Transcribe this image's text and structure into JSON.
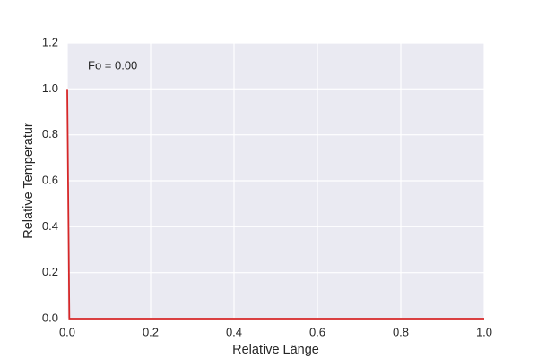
{
  "chart_data": {
    "type": "line",
    "x": [
      0,
      0.005,
      1
    ],
    "values": [
      1,
      0,
      0
    ],
    "color": "#d62728",
    "xlabel": "Relative Länge",
    "ylabel": "Relative Temperatur",
    "annotation": "Fo = 0.00",
    "xlim": [
      0,
      1
    ],
    "ylim": [
      0,
      1.2
    ],
    "xticks": [
      {
        "value": 0,
        "label": "0.0"
      },
      0.2,
      0.4,
      0.6,
      0.8,
      {
        "value": 1,
        "label": "1.0"
      }
    ],
    "yticks": [
      {
        "value": 0,
        "label": "0.0"
      },
      0.2,
      0.4,
      0.6,
      0.8,
      {
        "value": 1,
        "label": "1.0"
      },
      1.2
    ],
    "grid": true
  }
}
